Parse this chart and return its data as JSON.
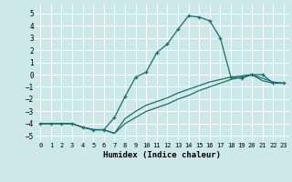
{
  "xlabel": "Humidex (Indice chaleur)",
  "xlim": [
    -0.5,
    23.5
  ],
  "ylim": [
    -5.5,
    5.8
  ],
  "yticks": [
    -5,
    -4,
    -3,
    -2,
    -1,
    0,
    1,
    2,
    3,
    4,
    5
  ],
  "xticks": [
    0,
    1,
    2,
    3,
    4,
    5,
    6,
    7,
    8,
    9,
    10,
    11,
    12,
    13,
    14,
    15,
    16,
    17,
    18,
    19,
    20,
    21,
    22,
    23
  ],
  "background_color": "#cce8e8",
  "grid_color": "#ffffff",
  "line_color": "#1a6e6e",
  "curve1_x": [
    0,
    1,
    2,
    3,
    4,
    5,
    6,
    7,
    8,
    9,
    10,
    11,
    12,
    13,
    14,
    15,
    16,
    17,
    18,
    19,
    20,
    21,
    22,
    23
  ],
  "curve1_y": [
    -4.0,
    -4.0,
    -4.0,
    -4.0,
    -4.3,
    -4.5,
    -4.5,
    -3.5,
    -1.8,
    -0.2,
    0.2,
    1.8,
    2.5,
    3.7,
    4.8,
    4.7,
    4.4,
    3.0,
    -0.2,
    -0.3,
    0.0,
    0.0,
    -0.7,
    -0.7
  ],
  "curve2_x": [
    0,
    1,
    2,
    3,
    4,
    5,
    6,
    7,
    8,
    9,
    10,
    11,
    12,
    13,
    14,
    15,
    16,
    17,
    18,
    19,
    20,
    21,
    22,
    23
  ],
  "curve2_y": [
    -4.0,
    -4.0,
    -4.0,
    -4.0,
    -4.3,
    -4.5,
    -4.5,
    -4.8,
    -3.6,
    -3.0,
    -2.5,
    -2.2,
    -1.9,
    -1.5,
    -1.2,
    -0.9,
    -0.6,
    -0.4,
    -0.2,
    -0.1,
    0.0,
    -0.3,
    -0.6,
    -0.7
  ],
  "curve3_x": [
    0,
    1,
    2,
    3,
    4,
    5,
    6,
    7,
    8,
    9,
    10,
    11,
    12,
    13,
    14,
    15,
    16,
    17,
    18,
    19,
    20,
    21,
    22,
    23
  ],
  "curve3_y": [
    -4.0,
    -4.0,
    -4.0,
    -4.0,
    -4.3,
    -4.5,
    -4.5,
    -4.8,
    -4.0,
    -3.5,
    -3.0,
    -2.7,
    -2.4,
    -2.0,
    -1.7,
    -1.3,
    -1.0,
    -0.7,
    -0.4,
    -0.2,
    0.0,
    -0.5,
    -0.7,
    -0.7
  ]
}
